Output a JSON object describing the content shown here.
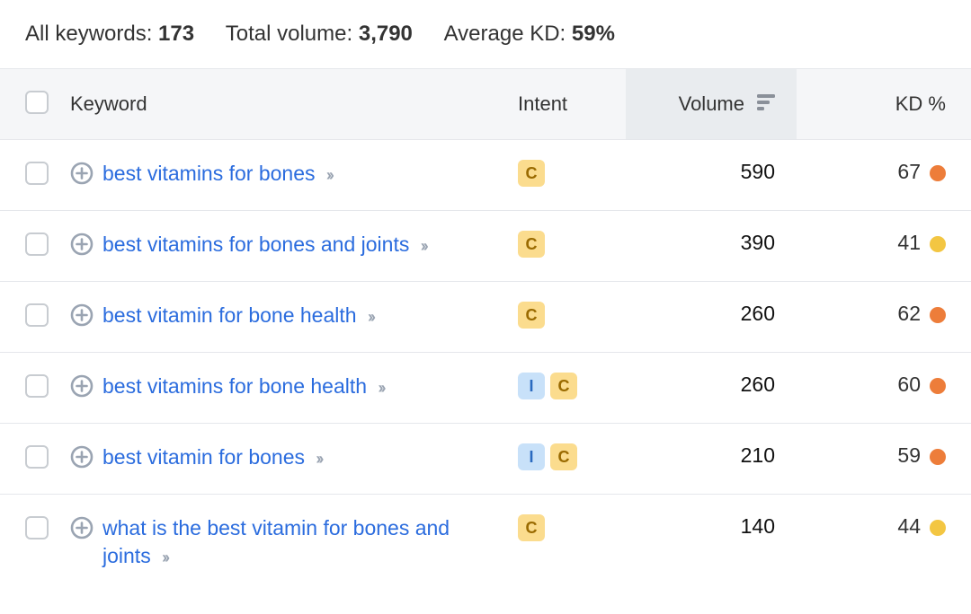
{
  "stats": {
    "all_keywords_label": "All keywords: ",
    "all_keywords_value": "173",
    "total_volume_label": "Total volume: ",
    "total_volume_value": "3,790",
    "avg_kd_label": "Average KD: ",
    "avg_kd_value": "59%"
  },
  "columns": {
    "keyword": "Keyword",
    "intent": "Intent",
    "volume": "Volume",
    "kd": "KD %"
  },
  "intent_badge_styles": {
    "C": {
      "bg": "#fbdc8e",
      "fg": "#9a6a00"
    },
    "I": {
      "bg": "#c8e1f9",
      "fg": "#2a6abf"
    }
  },
  "kd_tiers": {
    "orange": "#ed7d3a",
    "yellow": "#f3c642"
  },
  "rows": [
    {
      "keyword": "best vitamins for bones",
      "intents": [
        "C"
      ],
      "volume": "590",
      "kd": "67",
      "kd_color": "#ed7d3a"
    },
    {
      "keyword": "best vitamins for bones and joints",
      "intents": [
        "C"
      ],
      "volume": "390",
      "kd": "41",
      "kd_color": "#f3c642"
    },
    {
      "keyword": "best vitamin for bone health",
      "intents": [
        "C"
      ],
      "volume": "260",
      "kd": "62",
      "kd_color": "#ed7d3a"
    },
    {
      "keyword": "best vitamins for bone health",
      "intents": [
        "I",
        "C"
      ],
      "volume": "260",
      "kd": "60",
      "kd_color": "#ed7d3a"
    },
    {
      "keyword": "best vitamin for bones",
      "intents": [
        "I",
        "C"
      ],
      "volume": "210",
      "kd": "59",
      "kd_color": "#ed7d3a"
    },
    {
      "keyword": "what is the best vitamin for bones and joints",
      "intents": [
        "C"
      ],
      "volume": "140",
      "kd": "44",
      "kd_color": "#f3c642"
    }
  ]
}
